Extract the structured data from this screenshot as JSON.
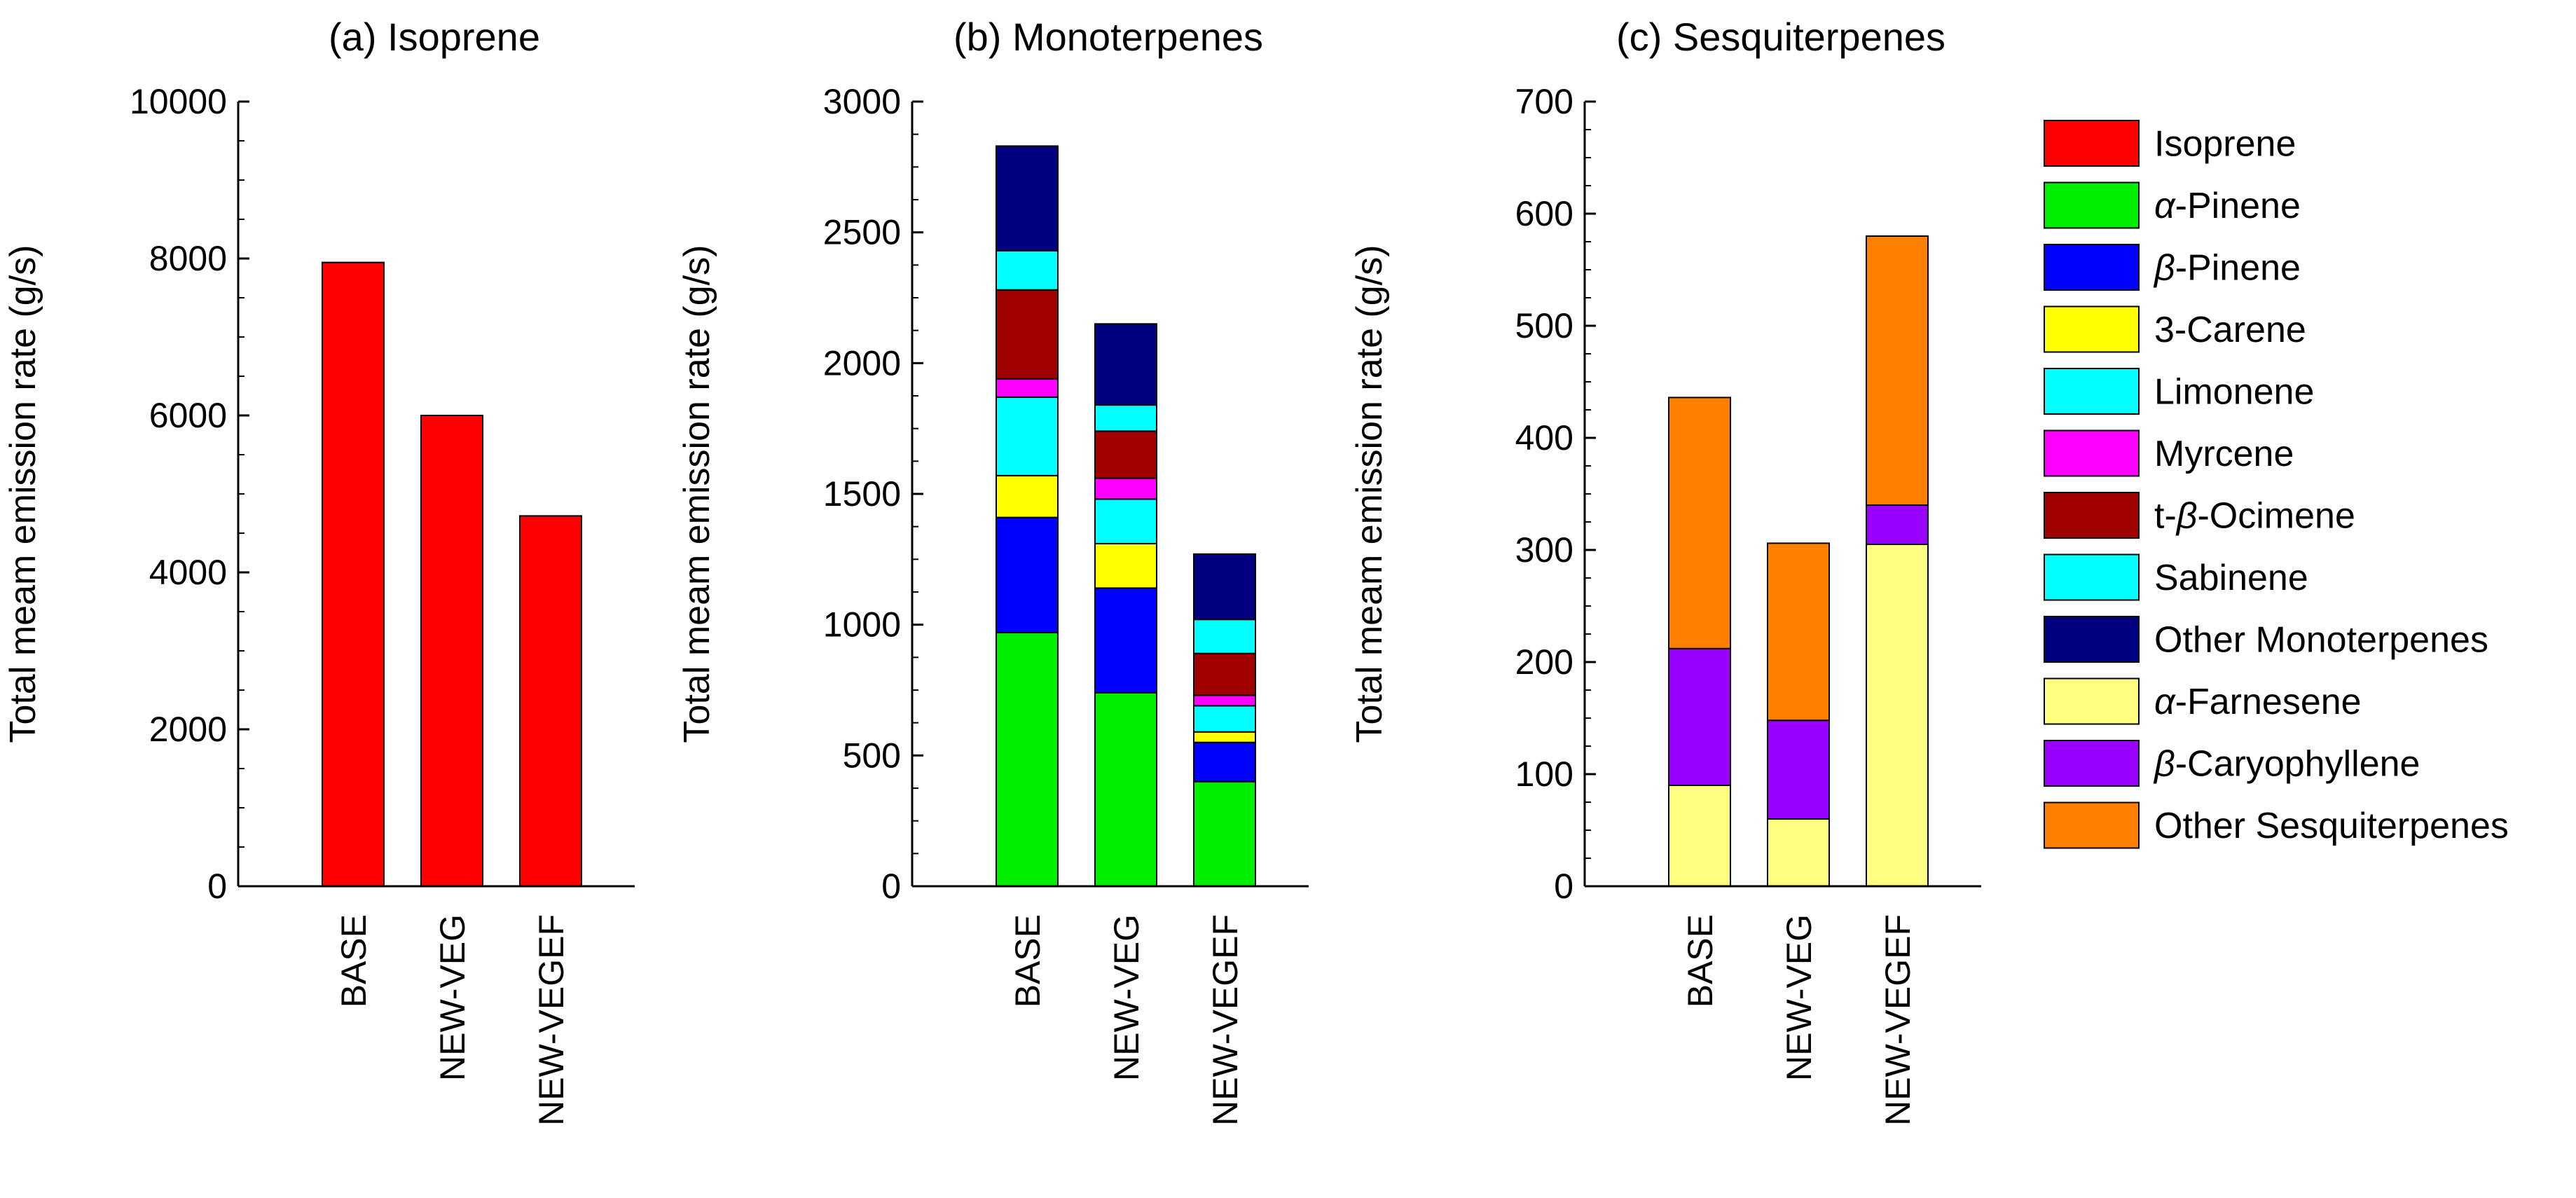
{
  "chart_data": [
    {
      "id": "isoprene",
      "type": "bar",
      "title": "(a) Isoprene",
      "ylabel": "Total meam emission rate (g/s)",
      "ylim": [
        0,
        10000
      ],
      "yticks": [
        0,
        2000,
        4000,
        6000,
        8000,
        10000
      ],
      "categories": [
        "BASE",
        "NEW-VEG",
        "NEW-VEGEF"
      ],
      "series": [
        {
          "name": "Isoprene",
          "values": [
            7950,
            6000,
            4720
          ]
        }
      ]
    },
    {
      "id": "monoterpenes",
      "type": "bar",
      "stacked": true,
      "title": "(b) Monoterpenes",
      "ylabel": "Total meam emission rate (g/s)",
      "ylim": [
        0,
        3000
      ],
      "yticks": [
        0,
        500,
        1000,
        1500,
        2000,
        2500,
        3000
      ],
      "categories": [
        "BASE",
        "NEW-VEG",
        "NEW-VEGEF"
      ],
      "series": [
        {
          "name": "α-Pinene",
          "values": [
            970,
            740,
            400
          ]
        },
        {
          "name": "β-Pinene",
          "values": [
            440,
            400,
            150
          ]
        },
        {
          "name": "3-Carene",
          "values": [
            160,
            170,
            40
          ]
        },
        {
          "name": "Limonene",
          "values": [
            300,
            170,
            100
          ]
        },
        {
          "name": "Myrcene",
          "values": [
            70,
            80,
            40
          ]
        },
        {
          "name": "t-β-Ocimene",
          "values": [
            340,
            180,
            160
          ]
        },
        {
          "name": "Sabinene",
          "values": [
            150,
            100,
            130
          ]
        },
        {
          "name": "Other Monoterpenes",
          "values": [
            400,
            310,
            250
          ]
        }
      ]
    },
    {
      "id": "sesquiterpenes",
      "type": "bar",
      "stacked": true,
      "title": "(c) Sesquiterpenes",
      "ylabel": "Total meam emission rate (g/s)",
      "ylim": [
        0,
        700
      ],
      "yticks": [
        0,
        100,
        200,
        300,
        400,
        500,
        600,
        700
      ],
      "categories": [
        "BASE",
        "NEW-VEG",
        "NEW-VEGEF"
      ],
      "series": [
        {
          "name": "α-Farnesene",
          "values": [
            90,
            60,
            305
          ]
        },
        {
          "name": "β-Caryophyllene",
          "values": [
            122,
            88,
            35
          ]
        },
        {
          "name": "Other Sesquiterpenes",
          "values": [
            224,
            158,
            240
          ]
        }
      ]
    }
  ],
  "legend": {
    "placement": "right",
    "items": [
      {
        "label": "Isoprene",
        "color": "#ff0000"
      },
      {
        "label": "α-Pinene",
        "color": "#00ee00"
      },
      {
        "label": "β-Pinene",
        "color": "#0000ff"
      },
      {
        "label": "3-Carene",
        "color": "#ffff00"
      },
      {
        "label": "Limonene",
        "color": "#00ffff"
      },
      {
        "label": "Myrcene",
        "color": "#ff00ff"
      },
      {
        "label": "t-β-Ocimene",
        "color": "#a00000"
      },
      {
        "label": "Sabinene",
        "color": "#00ffff"
      },
      {
        "label": "Other Monoterpenes",
        "color": "#000080"
      },
      {
        "label": "α-Farnesene",
        "color": "#ffff80"
      },
      {
        "label": "β-Caryophyllene",
        "color": "#9900ff"
      },
      {
        "label": "Other Sesquiterpenes",
        "color": "#ff8000"
      }
    ]
  }
}
